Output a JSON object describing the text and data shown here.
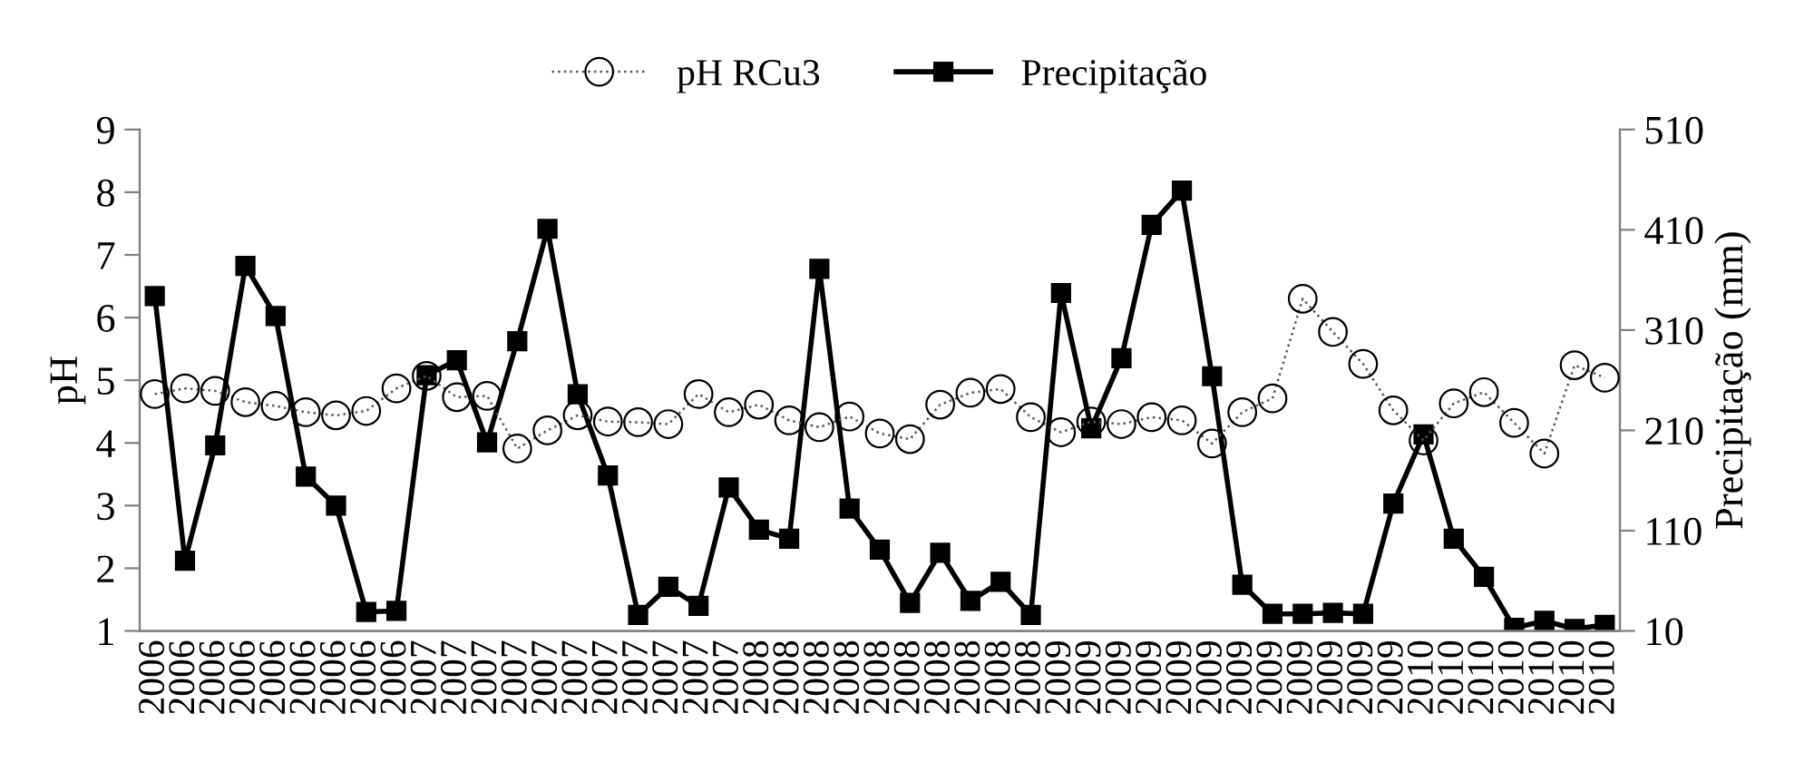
{
  "chart_data": {
    "type": "line",
    "ylabel": "pH",
    "y2label": "Precipitação (mm)",
    "categories": [
      "2006",
      "2006",
      "2006",
      "2006",
      "2006",
      "2006",
      "2006",
      "2006",
      "2006",
      "2007",
      "2007",
      "2007",
      "2007",
      "2007",
      "2007",
      "2007",
      "2007",
      "2007",
      "2007",
      "2007",
      "2008",
      "2008",
      "2008",
      "2008",
      "2008",
      "2008",
      "2008",
      "2008",
      "2008",
      "2008",
      "2009",
      "2009",
      "2009",
      "2009",
      "2009",
      "2009",
      "2009",
      "2009",
      "2009",
      "2009",
      "2009",
      "2009",
      "2010",
      "2010",
      "2010",
      "2010",
      "2010",
      "2010",
      "2010"
    ],
    "series": [
      {
        "name": "pH RCu3",
        "color": "#595959",
        "marker": "circle",
        "line_style": "dotted",
        "values": [
          4.78,
          4.87,
          4.83,
          4.65,
          4.59,
          4.49,
          4.44,
          4.51,
          4.87,
          5.07,
          4.73,
          4.75,
          3.91,
          4.2,
          4.44,
          4.34,
          4.33,
          4.3,
          4.78,
          4.49,
          4.61,
          4.36,
          4.25,
          4.42,
          4.15,
          4.06,
          4.61,
          4.8,
          4.86,
          4.41,
          4.17,
          4.34,
          4.3,
          4.41,
          4.36,
          3.99,
          4.49,
          4.71,
          6.3,
          5.77,
          5.26,
          4.52,
          4.04,
          4.63,
          4.81,
          4.32,
          3.83,
          5.24,
          5.04
        ]
      },
      {
        "name": "Precipitação",
        "color": "#000000",
        "marker": "square",
        "line_style": "solid",
        "axis": "y2",
        "values": [
          344,
          80,
          195,
          374,
          324,
          164,
          135,
          29,
          30,
          265,
          280,
          198,
          299,
          411,
          246,
          165,
          26,
          54,
          35,
          153,
          111,
          102,
          371,
          132,
          91,
          38,
          88,
          40,
          59,
          26,
          347,
          212,
          282,
          415,
          449,
          264,
          56,
          27,
          27,
          28,
          27,
          137,
          206,
          102,
          64,
          13,
          20,
          12,
          16
        ]
      }
    ],
    "ylim": [
      1,
      9
    ],
    "yticks": [
      1,
      2,
      3,
      4,
      5,
      6,
      7,
      8,
      9
    ],
    "y2lim": [
      10,
      510
    ],
    "y2ticks": [
      10,
      110,
      210,
      310,
      410,
      510
    ],
    "grid": false,
    "legend": "top"
  }
}
